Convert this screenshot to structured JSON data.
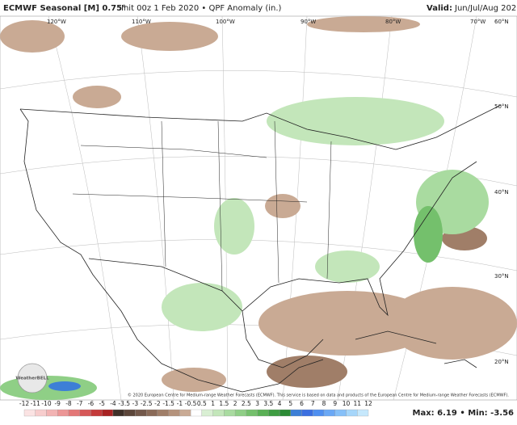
{
  "header": {
    "title_bold": "ECMWF Seasonal [M] 0.75",
    "degree": "°",
    "title_rest": "Init 00z 1 Feb 2020 • QPF Anomaly (in.)",
    "valid_label": "Valid:",
    "valid_value": "Jun/Jul/Aug 2020"
  },
  "map": {
    "longitude_labels": [
      "120°W",
      "110°W",
      "100°W",
      "90°W",
      "80°W",
      "70°W"
    ],
    "latitude_labels": [
      "60°N",
      "50°N",
      "40°N",
      "30°N",
      "20°N"
    ],
    "logo": "WeatherBELL",
    "copyright": "© 2020 European Centre for Medium-range Weather Forecasts (ECMWF). This service is based on data and products of the European Centre for Medium-range Weather Forecasts (ECMWF)."
  },
  "colorbar": {
    "labels": [
      -12,
      -11,
      -10,
      -9,
      -8,
      -7,
      -6,
      -5,
      -4,
      -3.5,
      -3,
      -2.5,
      -2,
      -1.5,
      -1,
      -0.5,
      0.5,
      1,
      1.5,
      2,
      2.5,
      3,
      3.5,
      4,
      5,
      6,
      7,
      8,
      9,
      10,
      11,
      12
    ],
    "colors": [
      "#fbe3e3",
      "#f7cdcd",
      "#f2b3b3",
      "#ec9696",
      "#e37777",
      "#d65858",
      "#c43a3a",
      "#a82222",
      "#3e3028",
      "#5c463a",
      "#73584a",
      "#8a6a58",
      "#a07e68",
      "#b5937c",
      "#c9aa94",
      "#ffffff",
      "#d9efd3",
      "#c3e6ba",
      "#a9dba0",
      "#8fcf86",
      "#74c06c",
      "#59b055",
      "#3f9d42",
      "#2b8a35",
      "#3d7fd6",
      "#3b6fe0",
      "#4f8ff0",
      "#6aa8f5",
      "#86c0f8",
      "#a6d6fa",
      "#c6e8fc"
    ]
  },
  "stats": "Max: 6.19 • Min: -3.56"
}
